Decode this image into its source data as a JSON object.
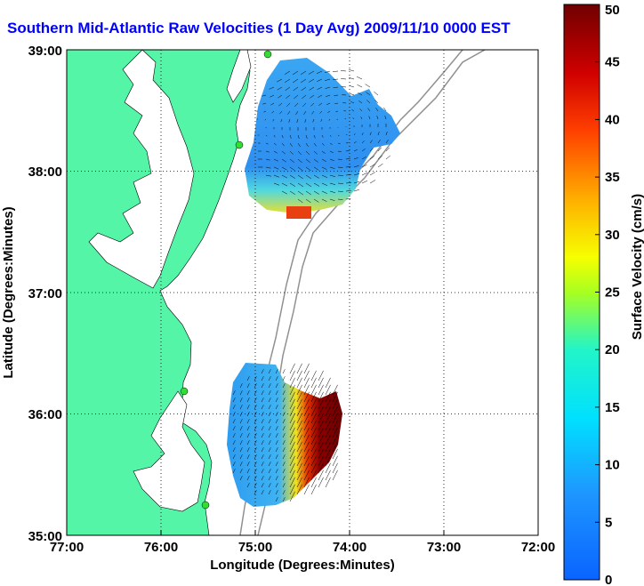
{
  "title": "Southern Mid-Atlantic Raw Velocities (1 Day Avg) 2009/11/10 0000 EST",
  "x_axis": {
    "label": "Longitude (Degrees:Minutes)",
    "ticks": [
      "77:00",
      "76:00",
      "75:00",
      "74:00",
      "73:00",
      "72:00"
    ]
  },
  "y_axis": {
    "label": "Latitude (Degrees:Minutes)",
    "ticks": [
      "39:00",
      "38:00",
      "37:00",
      "36:00",
      "35:00"
    ]
  },
  "colorbar": {
    "label": "Surface Velocity (cm/s)",
    "ticks": [
      "0",
      "5",
      "10",
      "15",
      "20",
      "25",
      "30",
      "35",
      "40",
      "45",
      "50"
    ],
    "min": 0,
    "max": 50
  },
  "colors": {
    "land": "#55f5a8",
    "title": "#0000ff",
    "low": "#0a64ff",
    "high": "#7a0000"
  },
  "grid": "dotted"
}
